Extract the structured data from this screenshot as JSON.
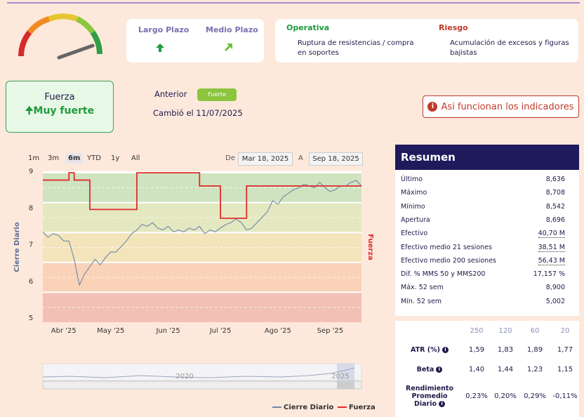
{
  "header": {
    "largo_plazo": "Largo Plazo",
    "medio_plazo": "Medio Plazo",
    "operativa": {
      "title": "Operativa",
      "text": "Ruptura de resistencias / compra en soportes"
    },
    "riesgo": {
      "title": "Riesgo",
      "text": "Acumulación de excesos y figuras bajistas"
    }
  },
  "fuerza": {
    "label": "Fuerza",
    "value": "Muy fuerte",
    "anterior_label": "Anterior",
    "anterior": "Fuerte",
    "cambio": "Cambió el 11/07/2025"
  },
  "info_button": "Asi funcionan los indicadores",
  "range_selector": {
    "buttons": [
      "1m",
      "3m",
      "6m",
      "YTD",
      "1y",
      "All"
    ],
    "selected_index": 2,
    "from_label": "De",
    "from": "Mar 18, 2025",
    "to_label": "A",
    "to": "Sep 18, 2025"
  },
  "chart_data": {
    "type": "line",
    "ylabel": "Cierre Diario",
    "y2label": "Fuerza",
    "categories": [
      null,
      null,
      null,
      null,
      "Abr '25",
      null,
      null,
      null,
      null,
      null,
      null,
      null,
      null,
      "May '25",
      null,
      null,
      null,
      null,
      null,
      null,
      null,
      null,
      null,
      null,
      "Jun '25",
      null,
      null,
      null,
      null,
      null,
      null,
      null,
      null,
      null,
      "Jul '25",
      null,
      null,
      null,
      null,
      null,
      null,
      null,
      null,
      null,
      null,
      "Ago '25",
      null,
      null,
      null,
      null,
      null,
      null,
      null,
      null,
      null,
      "Sep '25",
      null,
      null,
      null,
      null,
      null,
      null
    ],
    "series": [
      {
        "name": "Cierre Diario",
        "color": "#7088a8",
        "values": [
          7.35,
          7.2,
          7.3,
          7.25,
          7.1,
          7.1,
          6.6,
          5.9,
          6.2,
          6.4,
          6.6,
          6.45,
          6.65,
          6.8,
          6.8,
          6.95,
          7.1,
          7.3,
          7.4,
          7.55,
          7.5,
          7.6,
          7.45,
          7.4,
          7.5,
          7.35,
          7.4,
          7.35,
          7.45,
          7.4,
          7.5,
          7.3,
          7.4,
          7.35,
          7.45,
          7.55,
          7.6,
          7.7,
          7.6,
          7.4,
          7.45,
          7.6,
          7.75,
          7.9,
          8.2,
          8.1,
          8.3,
          8.4,
          8.5,
          8.55,
          8.65,
          8.6,
          8.55,
          8.7,
          8.55,
          8.45,
          8.5,
          8.6,
          8.6,
          8.7,
          8.75,
          8.6
        ]
      },
      {
        "name": "Fuerza",
        "color": "#e02b2b",
        "axis": "y2",
        "step": true,
        "values": [
          4.7,
          4.7,
          4.7,
          4.7,
          4.7,
          4.95,
          4.7,
          4.7,
          4.7,
          3.7,
          3.7,
          3.7,
          3.7,
          3.7,
          3.7,
          3.7,
          3.7,
          3.7,
          4.95,
          4.95,
          4.95,
          4.95,
          4.95,
          4.95,
          4.95,
          4.95,
          4.95,
          4.95,
          4.95,
          4.95,
          4.5,
          4.5,
          4.5,
          4.5,
          3.4,
          3.4,
          3.4,
          3.4,
          3.4,
          4.5,
          4.5,
          4.5,
          4.5,
          4.5,
          4.5,
          4.5,
          4.5,
          4.5,
          4.5,
          4.5,
          4.5,
          4.5,
          4.5,
          4.5,
          4.5,
          4.5,
          4.5,
          4.5,
          4.5,
          4.5,
          4.5,
          4.5
        ]
      }
    ],
    "ylim": [
      5,
      9
    ],
    "yticks": [
      5,
      6,
      7,
      8,
      9
    ],
    "y2lim": [
      0,
      5
    ],
    "grid": false,
    "navigator_labels": [
      "2020",
      "2025"
    ]
  },
  "resumen": {
    "title": "Resumen",
    "rows": [
      [
        "Último",
        "8,636"
      ],
      [
        "Máximo",
        "8,708"
      ],
      [
        "Mínimo",
        "8,542"
      ],
      [
        "Apertura",
        "8,696"
      ],
      [
        "Efectivo",
        "40,70 M"
      ],
      [
        "Efectivo medio 21 sesiones",
        "38,51 M"
      ],
      [
        "Efectivo medio 200 sesiones",
        "56,43 M"
      ],
      [
        "Dif. % MMS 50 y MMS200",
        "17,157 %"
      ],
      [
        "Máx. 52 sem",
        "8,900"
      ],
      [
        "Mín. 52 sem",
        "5,002"
      ]
    ]
  },
  "stats": {
    "headers": [
      "250",
      "120",
      "60",
      "20"
    ],
    "rows": [
      {
        "label": "ATR (%)",
        "values": [
          "1,59",
          "1,83",
          "1,89",
          "1,77"
        ]
      },
      {
        "label": "Beta",
        "values": [
          "1,40",
          "1,44",
          "1,23",
          "1,15"
        ]
      },
      {
        "label": "Rendimiento Promedio Diario",
        "values": [
          "0,23%",
          "0,20%",
          "0,29%",
          "-0,11%"
        ]
      }
    ]
  }
}
